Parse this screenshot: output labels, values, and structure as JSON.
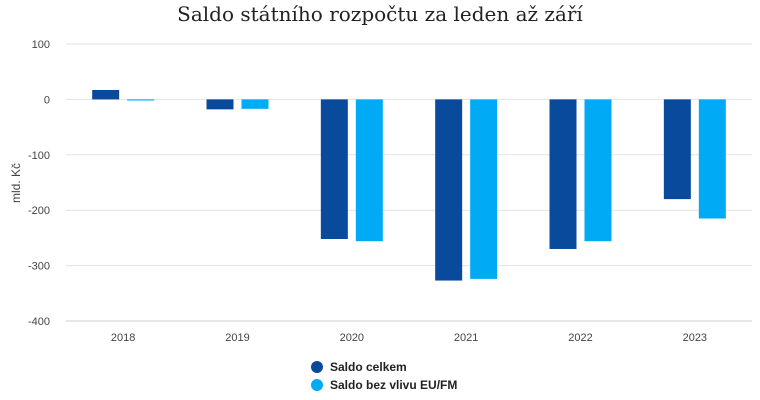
{
  "chart_data": {
    "type": "bar",
    "title": "Saldo státního rozpočtu za leden až září",
    "ylabel": "mld. Kč",
    "categories": [
      "2018",
      "2019",
      "2020",
      "2021",
      "2022",
      "2023"
    ],
    "yticks": [
      "100",
      "0",
      "-100",
      "-200",
      "-300",
      "-400"
    ],
    "ylim": [
      -400,
      100
    ],
    "grid": true,
    "legend_position": "bottom",
    "series": [
      {
        "name": "Saldo celkem",
        "color": "#0a4a9c",
        "values": [
          17,
          -18,
          -252,
          -327,
          -270,
          -180
        ]
      },
      {
        "name": "Saldo bez vlivu EU/FM",
        "color": "#00aaf5",
        "values": [
          -2,
          -17,
          -256,
          -324,
          -256,
          -215
        ]
      }
    ]
  }
}
